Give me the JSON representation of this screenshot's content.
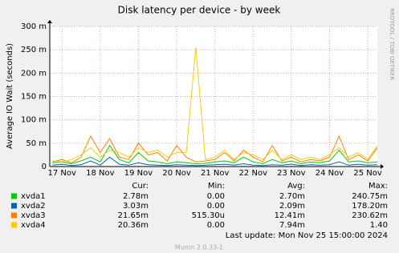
{
  "chart_data": {
    "type": "line",
    "title": "Disk latency per device - by week",
    "y_label": "Average IO Wait (seconds)",
    "side_text": "RRDTOOL / TOBI OETIKER",
    "ylim": [
      0,
      0.3
    ],
    "yticks": [
      0,
      {
        "value": 0.05,
        "label": "50 m"
      },
      {
        "value": 0.1,
        "label": "100 m"
      },
      {
        "value": 0.15,
        "label": "150 m"
      },
      {
        "value": 0.2,
        "label": "200 m"
      },
      {
        "value": 0.25,
        "label": "250 m"
      },
      {
        "value": 0.3,
        "label": "300 m"
      }
    ],
    "xlim": [
      16.68,
      25.25
    ],
    "xticks": [
      {
        "value": 17,
        "label": "17 Nov"
      },
      {
        "value": 18,
        "label": "18 Nov"
      },
      {
        "value": 19,
        "label": "19 Nov"
      },
      {
        "value": 20,
        "label": "20 Nov"
      },
      {
        "value": 21,
        "label": "21 Nov"
      },
      {
        "value": 22,
        "label": "22 Nov"
      },
      {
        "value": 23,
        "label": "23 Nov"
      },
      {
        "value": 24,
        "label": "24 Nov"
      },
      {
        "value": 25,
        "label": "25 Nov"
      }
    ],
    "grid": true,
    "x": [
      16.75,
      17,
      17.25,
      17.5,
      17.75,
      18,
      18.25,
      18.5,
      18.75,
      19,
      19.25,
      19.5,
      19.75,
      20,
      20.25,
      20.5,
      20.75,
      21,
      21.25,
      21.5,
      21.75,
      22,
      22.25,
      22.5,
      22.75,
      23,
      23.25,
      23.5,
      23.75,
      24,
      24.25,
      24.5,
      24.75,
      25,
      25.25
    ],
    "stat_headers": [
      "Cur:",
      "Min:",
      "Avg:",
      "Max:"
    ],
    "series": [
      {
        "name": "xvda1",
        "color": "#00cc00",
        "stats": [
          "2.78m",
          "0.00",
          "2.70m",
          "240.75m"
        ],
        "values": [
          0.008,
          0.01,
          0.006,
          0.012,
          0.02,
          0.01,
          0.045,
          0.015,
          0.008,
          0.03,
          0.012,
          0.01,
          0.006,
          0.01,
          0.008,
          0.006,
          0.007,
          0.01,
          0.012,
          0.008,
          0.02,
          0.01,
          0.006,
          0.015,
          0.008,
          0.012,
          0.006,
          0.01,
          0.008,
          0.012,
          0.035,
          0.01,
          0.012,
          0.008,
          0.01
        ]
      },
      {
        "name": "xvda2",
        "color": "#0066b3",
        "stats": [
          "3.03m",
          "0.00",
          "2.09m",
          "178.20m"
        ],
        "values": [
          0.003,
          0.005,
          0.002,
          0.004,
          0.012,
          0.003,
          0.02,
          0.005,
          0.003,
          0.008,
          0.004,
          0.003,
          0.002,
          0.004,
          0.003,
          0.002,
          0.003,
          0.004,
          0.005,
          0.003,
          0.006,
          0.003,
          0.002,
          0.004,
          0.003,
          0.005,
          0.002,
          0.004,
          0.003,
          0.004,
          0.01,
          0.003,
          0.005,
          0.003,
          0.004
        ]
      },
      {
        "name": "xvda3",
        "color": "#ff8000",
        "stats": [
          "21.65m",
          "515.30u",
          "12.41m",
          "230.62m"
        ],
        "values": [
          0.01,
          0.015,
          0.008,
          0.02,
          0.065,
          0.03,
          0.06,
          0.02,
          0.015,
          0.05,
          0.025,
          0.03,
          0.012,
          0.045,
          0.02,
          0.01,
          0.012,
          0.015,
          0.03,
          0.012,
          0.035,
          0.02,
          0.01,
          0.045,
          0.012,
          0.02,
          0.01,
          0.015,
          0.012,
          0.02,
          0.065,
          0.015,
          0.025,
          0.012,
          0.04
        ]
      },
      {
        "name": "xvda4",
        "color": "#ffcc00",
        "stats": [
          "20.36m",
          "0.00",
          "7.94m",
          "1.40"
        ],
        "values": [
          0.012,
          0.01,
          0.015,
          0.025,
          0.04,
          0.02,
          0.035,
          0.03,
          0.02,
          0.04,
          0.03,
          0.035,
          0.02,
          0.03,
          0.03,
          0.255,
          0.015,
          0.02,
          0.035,
          0.015,
          0.03,
          0.025,
          0.015,
          0.035,
          0.015,
          0.025,
          0.015,
          0.02,
          0.015,
          0.025,
          0.04,
          0.02,
          0.03,
          0.015,
          0.045
        ]
      }
    ],
    "last_update": "Last update:  Mon Nov 25 15:00:00 2024",
    "footer": "Munin 2.0.33-1"
  }
}
